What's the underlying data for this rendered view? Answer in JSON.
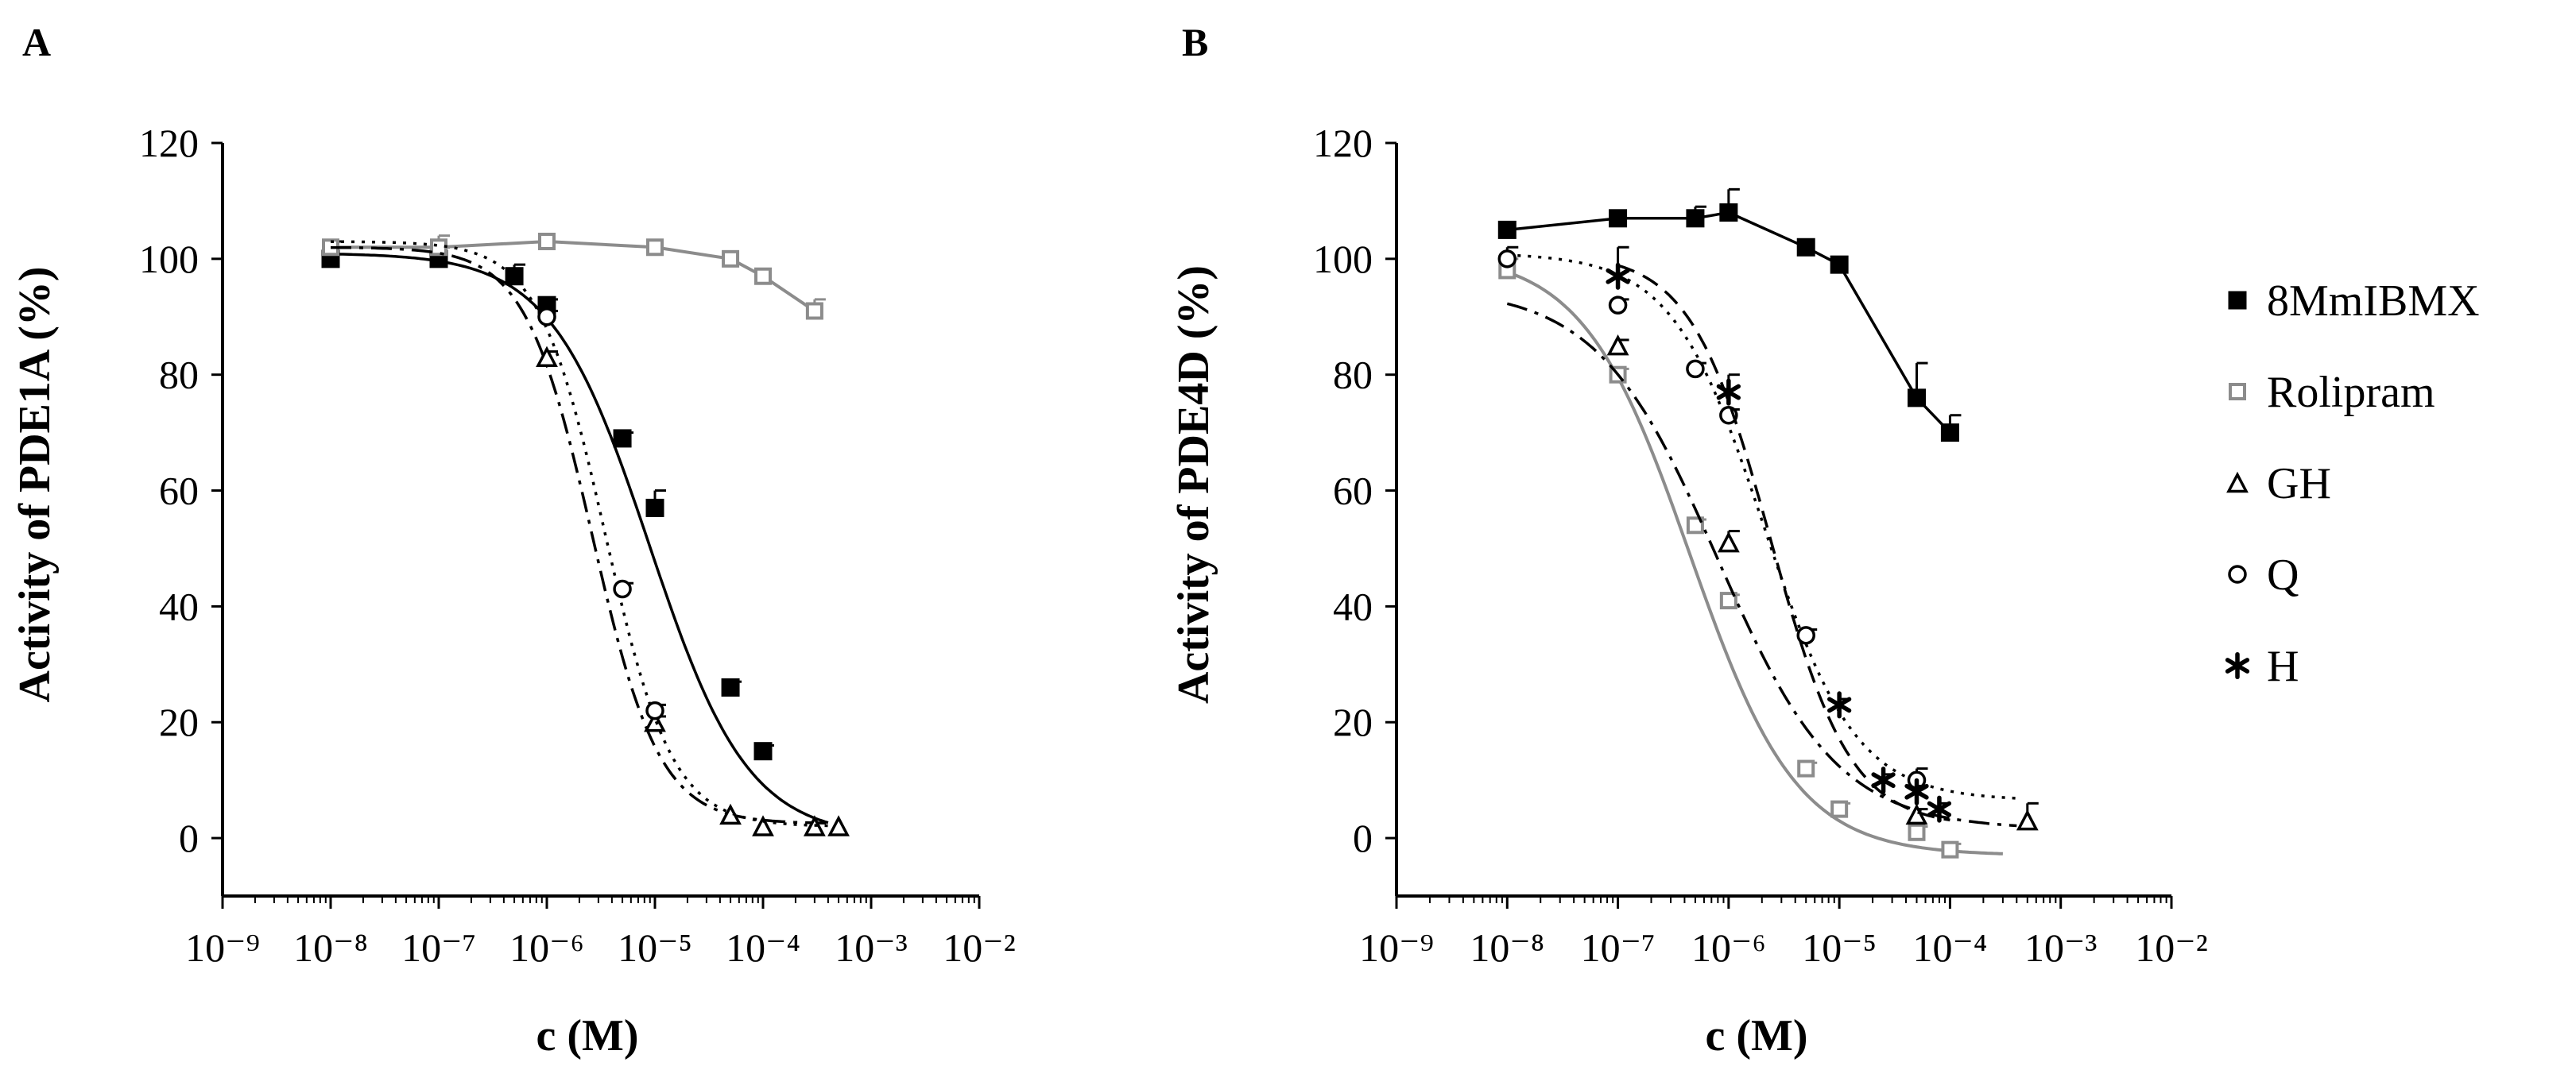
{
  "figure": {
    "legend": [
      {
        "name": "8MmIBMX",
        "marker": "filled-square",
        "color": "#000000"
      },
      {
        "name": "Rolipram",
        "marker": "open-square",
        "color": "#8c8c8c"
      },
      {
        "name": "GH",
        "marker": "open-triangle",
        "color": "#000000"
      },
      {
        "name": "Q",
        "marker": "open-circle",
        "color": "#000000"
      },
      {
        "name": "H",
        "marker": "asterisk",
        "color": "#000000"
      }
    ]
  },
  "chart_data": [
    {
      "type": "scatter",
      "panel": "A",
      "xlabel": "c (M)",
      "ylabel": "Activity of PDE1A (%)",
      "xscale": "log",
      "xlim": [
        1e-09,
        0.01
      ],
      "ylim": [
        -10,
        120
      ],
      "xticks": [
        -9,
        -8,
        -7,
        -6,
        -5,
        -4,
        -3,
        -2
      ],
      "yticks": [
        0,
        20,
        40,
        60,
        80,
        100,
        120
      ],
      "series": [
        {
          "name": "8MmIBMX",
          "marker": "filled-square",
          "line": "solid",
          "color": "#000000",
          "x": [
            1e-08,
            1e-07,
            5e-07,
            1e-06,
            5e-06,
            1e-05,
            5e-05,
            0.0001
          ],
          "y": [
            100,
            100,
            97,
            92,
            69,
            57,
            26,
            15
          ],
          "err": [
            3,
            2,
            2,
            1,
            1,
            3,
            1,
            1
          ],
          "fit": {
            "top": 101,
            "bottom": 0,
            "logec50": -5.05,
            "hill": 0.95,
            "xmin": 1e-08,
            "xmax": 0.0004
          }
        },
        {
          "name": "Rolipram",
          "marker": "open-square",
          "line": "solid",
          "color": "#8c8c8c",
          "x": [
            1e-08,
            1e-07,
            1e-06,
            1e-05,
            5e-05,
            0.0001,
            0.0003
          ],
          "y": [
            102,
            102,
            103,
            102,
            100,
            97,
            91
          ],
          "err": [
            0,
            2,
            0,
            0,
            0,
            0,
            2
          ],
          "path": true
        },
        {
          "name": "GH",
          "marker": "open-triangle",
          "line": "dashdot",
          "color": "#000000",
          "x": [
            1e-06,
            1e-05,
            5e-05,
            0.0001,
            0.0003,
            0.0005
          ],
          "y": [
            83,
            20,
            4,
            2,
            2,
            2
          ],
          "err": [
            1,
            1,
            0,
            0,
            0,
            0
          ],
          "fit": {
            "top": 102,
            "bottom": 2.5,
            "logec50": -5.58,
            "hill": 1.4,
            "xmin": 1e-08,
            "xmax": 0.0004
          }
        },
        {
          "name": "Q",
          "marker": "open-circle",
          "line": "dotted",
          "color": "#000000",
          "x": [
            1e-06,
            5e-06,
            1e-05
          ],
          "y": [
            90,
            43,
            22
          ],
          "err": [
            1,
            1,
            1
          ],
          "fit": {
            "top": 103,
            "bottom": 2,
            "logec50": -5.46,
            "hill": 1.4,
            "xmin": 1e-08,
            "xmax": 0.0004
          }
        }
      ]
    },
    {
      "type": "scatter",
      "panel": "B",
      "xlabel": "c (M)",
      "ylabel": "Activity of PDE4D (%)",
      "xscale": "log",
      "xlim": [
        1e-09,
        0.01
      ],
      "ylim": [
        -10,
        120
      ],
      "xticks": [
        -9,
        -8,
        -7,
        -6,
        -5,
        -4,
        -3,
        -2
      ],
      "yticks": [
        0,
        20,
        40,
        60,
        80,
        100,
        120
      ],
      "series": [
        {
          "name": "8MmIBMX",
          "marker": "filled-square",
          "line": "solid",
          "color": "#000000",
          "x": [
            1e-08,
            1e-07,
            5e-07,
            1e-06,
            5e-06,
            1e-05,
            5e-05,
            0.0001
          ],
          "y": [
            105,
            107,
            107,
            108,
            102,
            99,
            76,
            70
          ],
          "err": [
            0,
            0,
            2,
            4,
            0,
            0,
            6,
            3
          ],
          "path": true
        },
        {
          "name": "Rolipram",
          "marker": "open-square",
          "line": "solid",
          "color": "#8c8c8c",
          "x": [
            1e-08,
            1e-07,
            5e-07,
            1e-06,
            5e-06,
            1e-05,
            5e-05,
            0.0001
          ],
          "y": [
            98,
            80,
            54,
            41,
            12,
            5,
            1,
            -2
          ],
          "err": [
            2,
            1,
            1,
            1,
            1,
            1,
            1,
            1
          ],
          "fit": {
            "top": 101,
            "bottom": -3,
            "logec50": -6.35,
            "hill": 0.9,
            "xmin": 1e-08,
            "xmax": 0.0003
          }
        },
        {
          "name": "GH",
          "marker": "open-triangle",
          "line": "dashdot",
          "color": "#000000",
          "x": [
            1e-07,
            1e-06,
            5e-05,
            0.0005
          ],
          "y": [
            85,
            51,
            4,
            3
          ],
          "err": [
            1,
            2,
            1,
            3
          ],
          "fit": {
            "top": 95,
            "bottom": 1.5,
            "logec50": -6.1,
            "hill": 0.8,
            "xmin": 1e-08,
            "xmax": 0.0004
          }
        },
        {
          "name": "Q",
          "marker": "open-circle",
          "line": "dotted",
          "color": "#000000",
          "x": [
            1e-08,
            1e-07,
            5e-07,
            1e-06,
            5e-06,
            5e-05
          ],
          "y": [
            100,
            92,
            81,
            73,
            35,
            10
          ],
          "err": [
            2,
            1,
            1,
            1,
            1,
            2
          ],
          "fit": {
            "top": 101,
            "bottom": 6.5,
            "logec50": -5.68,
            "hill": 1.05,
            "xmin": 1e-08,
            "xmax": 0.0004
          }
        },
        {
          "name": "H",
          "marker": "asterisk",
          "line": "dashed",
          "color": "#000000",
          "x": [
            1e-07,
            1e-06,
            1e-05,
            2.5e-05,
            5e-05,
            8e-05
          ],
          "y": [
            97,
            77,
            23,
            10,
            8,
            5
          ],
          "err": [
            5,
            3,
            1,
            1,
            1,
            1
          ],
          "fit": {
            "top": 101,
            "bottom": 2,
            "logec50": -5.62,
            "hill": 1.2,
            "xmin": 1e-07,
            "xmax": 0.0001
          }
        }
      ]
    }
  ]
}
